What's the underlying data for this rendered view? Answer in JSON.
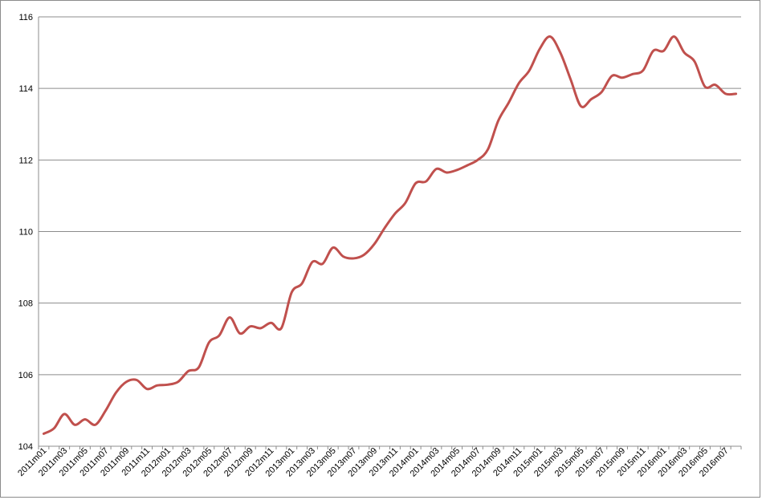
{
  "chart_data": {
    "type": "line",
    "title": "",
    "xlabel": "",
    "ylabel": "",
    "ylim": [
      104,
      116
    ],
    "yticks": [
      104,
      106,
      108,
      110,
      112,
      114,
      116
    ],
    "grid": "horizontal",
    "legend": "none",
    "line_color": "#c0504d",
    "x": [
      "2011m01",
      "2011m02",
      "2011m03",
      "2011m04",
      "2011m05",
      "2011m06",
      "2011m07",
      "2011m08",
      "2011m09",
      "2011m10",
      "2011m11",
      "2011m12",
      "2012m01",
      "2012m02",
      "2012m03",
      "2012m04",
      "2012m05",
      "2012m06",
      "2012m07",
      "2012m08",
      "2012m09",
      "2012m10",
      "2012m11",
      "2012m12",
      "2013m01",
      "2013m02",
      "2013m03",
      "2013m04",
      "2013m05",
      "2013m06",
      "2013m07",
      "2013m08",
      "2013m09",
      "2013m10",
      "2013m11",
      "2013m12",
      "2014m01",
      "2014m02",
      "2014m03",
      "2014m04",
      "2014m05",
      "2014m06",
      "2014m07",
      "2014m08",
      "2014m09",
      "2014m10",
      "2014m11",
      "2014m12",
      "2015m01",
      "2015m02",
      "2015m03",
      "2015m04",
      "2015m05",
      "2015m06",
      "2015m07",
      "2015m08",
      "2015m09",
      "2015m10",
      "2015m11",
      "2015m12",
      "2016m01",
      "2016m02",
      "2016m03",
      "2016m04",
      "2016m05",
      "2016m06",
      "2016m07",
      "2016m08"
    ],
    "tick_labels": [
      "2011m01",
      "2011m03",
      "2011m05",
      "2011m07",
      "2011m09",
      "2011m11",
      "2012m01",
      "2012m03",
      "2012m05",
      "2012m07",
      "2012m09",
      "2012m11",
      "2013m01",
      "2013m03",
      "2013m05",
      "2013m07",
      "2013m09",
      "2013m11",
      "2014m01",
      "2014m03",
      "2014m05",
      "2014m07",
      "2014m09",
      "2014m11",
      "2015m01",
      "2015m03",
      "2015m05",
      "2015m07",
      "2015m09",
      "2015m11",
      "2016m01",
      "2016m03",
      "2016m05",
      "2016m07"
    ],
    "series": [
      {
        "values": [
          104.35,
          104.5,
          104.9,
          104.6,
          104.75,
          104.6,
          105.0,
          105.5,
          105.8,
          105.85,
          105.6,
          105.7,
          105.72,
          105.8,
          106.1,
          106.2,
          106.9,
          107.1,
          107.6,
          107.15,
          107.35,
          107.3,
          107.45,
          107.3,
          108.3,
          108.55,
          109.15,
          109.1,
          109.55,
          109.3,
          109.25,
          109.35,
          109.65,
          110.1,
          110.5,
          110.8,
          111.35,
          111.4,
          111.75,
          111.65,
          111.72,
          111.85,
          112.0,
          112.3,
          113.1,
          113.6,
          114.15,
          114.5,
          115.1,
          115.45,
          115.0,
          114.25,
          113.5,
          113.7,
          113.9,
          114.35,
          114.3,
          114.4,
          114.5,
          115.05,
          115.05,
          115.45,
          115.0,
          114.75,
          114.05,
          114.1,
          113.85,
          113.85
        ]
      }
    ]
  }
}
